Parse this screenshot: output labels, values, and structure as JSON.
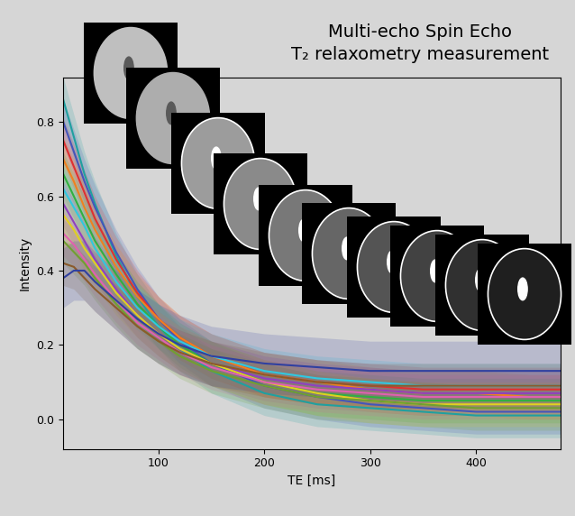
{
  "chart_data": {
    "type": "line",
    "title": "Multi-echo Spin Echo\nT₂ relaxometry measurement",
    "x_label": "TE [ms]",
    "y_label": "Intensity",
    "x": [
      10,
      20,
      30,
      40,
      60,
      80,
      100,
      120,
      150,
      200,
      250,
      300,
      350,
      400,
      450,
      480
    ],
    "xlim": [
      10,
      480
    ],
    "xticks": [
      100,
      200,
      300,
      400
    ],
    "ylim": [
      -0.08,
      0.92
    ],
    "yticks": [
      0.0,
      0.2,
      0.4,
      0.6,
      0.8
    ],
    "grid": false,
    "series": [
      {
        "color": "#1fa0a0",
        "spread": 0.06,
        "values": [
          0.86,
          0.76,
          0.66,
          0.58,
          0.44,
          0.33,
          0.25,
          0.19,
          0.13,
          0.07,
          0.04,
          0.03,
          0.02,
          0.01,
          0.01,
          0.01
        ]
      },
      {
        "color": "#4455bb",
        "spread": 0.06,
        "values": [
          0.8,
          0.72,
          0.64,
          0.57,
          0.45,
          0.35,
          0.27,
          0.21,
          0.15,
          0.09,
          0.06,
          0.04,
          0.03,
          0.02,
          0.02,
          0.02
        ]
      },
      {
        "color": "#e03030",
        "spread": 0.06,
        "values": [
          0.75,
          0.68,
          0.61,
          0.54,
          0.43,
          0.34,
          0.27,
          0.22,
          0.17,
          0.12,
          0.1,
          0.09,
          0.08,
          0.08,
          0.08,
          0.08
        ]
      },
      {
        "color": "#f08020",
        "spread": 0.06,
        "values": [
          0.7,
          0.64,
          0.57,
          0.51,
          0.41,
          0.33,
          0.27,
          0.22,
          0.17,
          0.12,
          0.1,
          0.08,
          0.07,
          0.07,
          0.06,
          0.06
        ]
      },
      {
        "color": "#30b040",
        "spread": 0.06,
        "values": [
          0.66,
          0.6,
          0.54,
          0.48,
          0.39,
          0.31,
          0.25,
          0.2,
          0.15,
          0.1,
          0.07,
          0.06,
          0.05,
          0.05,
          0.05,
          0.05
        ]
      },
      {
        "color": "#30c8e0",
        "spread": 0.06,
        "values": [
          0.62,
          0.57,
          0.52,
          0.46,
          0.37,
          0.3,
          0.25,
          0.21,
          0.17,
          0.13,
          0.11,
          0.1,
          0.09,
          0.09,
          0.09,
          0.09
        ]
      },
      {
        "color": "#9040c0",
        "spread": 0.06,
        "values": [
          0.58,
          0.53,
          0.48,
          0.43,
          0.35,
          0.28,
          0.23,
          0.19,
          0.15,
          0.11,
          0.09,
          0.08,
          0.07,
          0.07,
          0.07,
          0.07
        ]
      },
      {
        "color": "#e0d020",
        "spread": 0.06,
        "values": [
          0.55,
          0.51,
          0.46,
          0.42,
          0.34,
          0.28,
          0.23,
          0.19,
          0.15,
          0.1,
          0.07,
          0.05,
          0.04,
          0.04,
          0.04,
          0.04
        ]
      },
      {
        "color": "#e060b0",
        "spread": 0.06,
        "values": [
          0.5,
          0.47,
          0.43,
          0.39,
          0.32,
          0.26,
          0.22,
          0.18,
          0.14,
          0.1,
          0.08,
          0.07,
          0.06,
          0.06,
          0.06,
          0.06
        ]
      },
      {
        "color": "#70a030",
        "spread": 0.06,
        "values": [
          0.48,
          0.45,
          0.42,
          0.38,
          0.31,
          0.25,
          0.21,
          0.17,
          0.13,
          0.09,
          0.06,
          0.05,
          0.04,
          0.03,
          0.03,
          0.03
        ]
      },
      {
        "color": "#8b5a2b",
        "spread": 0.06,
        "values": [
          0.42,
          0.41,
          0.38,
          0.35,
          0.3,
          0.25,
          0.21,
          0.18,
          0.15,
          0.12,
          0.1,
          0.09,
          0.09,
          0.09,
          0.09,
          0.09
        ]
      },
      {
        "color": "#3040a0",
        "spread": 0.08,
        "values": [
          0.38,
          0.4,
          0.4,
          0.37,
          0.32,
          0.27,
          0.23,
          0.2,
          0.17,
          0.15,
          0.14,
          0.13,
          0.13,
          0.13,
          0.13,
          0.13
        ]
      }
    ]
  }
}
